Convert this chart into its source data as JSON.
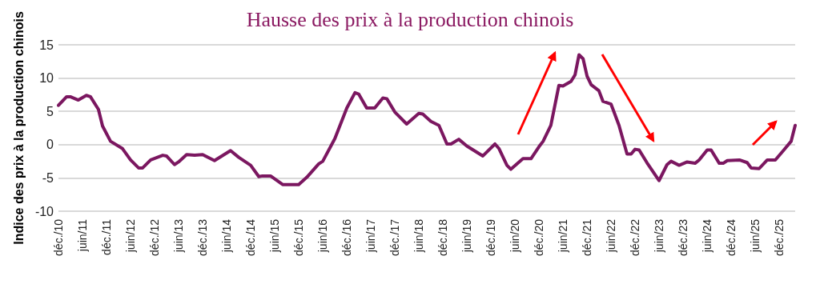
{
  "chart_data": {
    "type": "line",
    "title": "Hausse des prix à la production chinois",
    "ylabel": "Indice des prix à la production chinois",
    "x": [
      "2010-12",
      "2011-02",
      "2011-03",
      "2011-05",
      "2011-07",
      "2011-08",
      "2011-10",
      "2011-11",
      "2012-01",
      "2012-04",
      "2012-06",
      "2012-08",
      "2012-09",
      "2012-11",
      "2013-02",
      "2013-03",
      "2013-05",
      "2013-06",
      "2013-08",
      "2013-10",
      "2013-12",
      "2014-03",
      "2014-07",
      "2014-09",
      "2014-12",
      "2015-02",
      "2015-03",
      "2015-05",
      "2015-08",
      "2015-12",
      "2016-02",
      "2016-05",
      "2016-06",
      "2016-09",
      "2016-12",
      "2017-02",
      "2017-03",
      "2017-05",
      "2017-07",
      "2017-09",
      "2017-10",
      "2017-12",
      "2018-03",
      "2018-06",
      "2018-07",
      "2018-09",
      "2018-11",
      "2019-01",
      "2019-02",
      "2019-04",
      "2019-06",
      "2019-10",
      "2020-01",
      "2020-02",
      "2020-04",
      "2020-05",
      "2020-08",
      "2020-10",
      "2020-12",
      "2021-01",
      "2021-03",
      "2021-05",
      "2021-06",
      "2021-08",
      "2021-09",
      "2021-10",
      "2021-11",
      "2021-12",
      "2022-01",
      "2022-03",
      "2022-04",
      "2022-06",
      "2022-08",
      "2022-09",
      "2022-10",
      "2022-11",
      "2022-12",
      "2023-01",
      "2023-03",
      "2023-06",
      "2023-08",
      "2023-09",
      "2023-11",
      "2024-01",
      "2024-03",
      "2024-04",
      "2024-06",
      "2024-07",
      "2024-09",
      "2024-10",
      "2024-11",
      "2025-02",
      "2025-04",
      "2025-05",
      "2025-07",
      "2025-09",
      "2025-11",
      "2026-01",
      "2026-03",
      "2026-04"
    ],
    "series": [
      {
        "color": "#7b1760",
        "values": [
          5.9,
          7.2,
          7.2,
          6.7,
          7.4,
          7.2,
          5.3,
          2.8,
          0.5,
          -0.6,
          -2.3,
          -3.5,
          -3.5,
          -2.3,
          -1.6,
          -1.7,
          -3.0,
          -2.6,
          -1.5,
          -1.6,
          -1.5,
          -2.4,
          -0.9,
          -1.9,
          -3.1,
          -4.8,
          -4.7,
          -4.7,
          -6.0,
          -6.0,
          -4.9,
          -2.9,
          -2.5,
          0.9,
          5.5,
          7.8,
          7.6,
          5.5,
          5.5,
          7.0,
          6.9,
          4.9,
          3.1,
          4.7,
          4.6,
          3.5,
          2.9,
          0.1,
          0.1,
          0.8,
          -0.2,
          -1.7,
          0.1,
          -0.6,
          -3.1,
          -3.7,
          -2.1,
          -2.1,
          -0.3,
          0.5,
          2.9,
          8.9,
          8.8,
          9.5,
          10.5,
          13.5,
          12.9,
          10.3,
          9.0,
          8.1,
          6.5,
          6.1,
          2.9,
          0.7,
          -1.4,
          -1.4,
          -0.7,
          -0.8,
          -2.7,
          -5.4,
          -3.0,
          -2.5,
          -3.1,
          -2.6,
          -2.8,
          -2.3,
          -0.8,
          -0.8,
          -2.8,
          -2.8,
          -2.4,
          -2.3,
          -2.7,
          -3.5,
          -3.6,
          -2.3,
          -2.3,
          -0.9,
          0.5,
          2.9
        ]
      }
    ],
    "xlim": [
      "2010-12",
      "2026-04"
    ],
    "xticks": [
      {
        "value": "2010-12",
        "label": "déc./10"
      },
      {
        "value": "2011-06",
        "label": "juin/11"
      },
      {
        "value": "2011-12",
        "label": "déc./11"
      },
      {
        "value": "2012-06",
        "label": "juin/12"
      },
      {
        "value": "2012-12",
        "label": "déc./12"
      },
      {
        "value": "2013-06",
        "label": "juin/13"
      },
      {
        "value": "2013-12",
        "label": "déc./13"
      },
      {
        "value": "2014-06",
        "label": "juin/14"
      },
      {
        "value": "2014-12",
        "label": "déc./14"
      },
      {
        "value": "2015-06",
        "label": "juin/15"
      },
      {
        "value": "2015-12",
        "label": "déc./15"
      },
      {
        "value": "2016-06",
        "label": "juin/16"
      },
      {
        "value": "2016-12",
        "label": "déc./16"
      },
      {
        "value": "2017-06",
        "label": "juin/17"
      },
      {
        "value": "2017-12",
        "label": "déc./17"
      },
      {
        "value": "2018-06",
        "label": "juin/18"
      },
      {
        "value": "2018-12",
        "label": "déc./18"
      },
      {
        "value": "2019-06",
        "label": "juin/19"
      },
      {
        "value": "2019-12",
        "label": "déc./19"
      },
      {
        "value": "2020-06",
        "label": "juin/20"
      },
      {
        "value": "2020-12",
        "label": "déc./20"
      },
      {
        "value": "2021-06",
        "label": "juin/21"
      },
      {
        "value": "2021-12",
        "label": "déc./21"
      },
      {
        "value": "2022-06",
        "label": "juin/22"
      },
      {
        "value": "2022-12",
        "label": "déc./22"
      },
      {
        "value": "2023-06",
        "label": "juin/23"
      },
      {
        "value": "2023-12",
        "label": "déc./23"
      },
      {
        "value": "2024-06",
        "label": "juin/24"
      },
      {
        "value": "2024-12",
        "label": "déc./24"
      },
      {
        "value": "2025-06",
        "label": "juin/25"
      },
      {
        "value": "2025-12",
        "label": "déc./25"
      }
    ],
    "ylim": [
      -10,
      15
    ],
    "yticks": [
      -10,
      -5,
      0,
      5,
      10,
      15
    ],
    "grid": "y",
    "marker": "none",
    "line_style": "solid"
  }
}
